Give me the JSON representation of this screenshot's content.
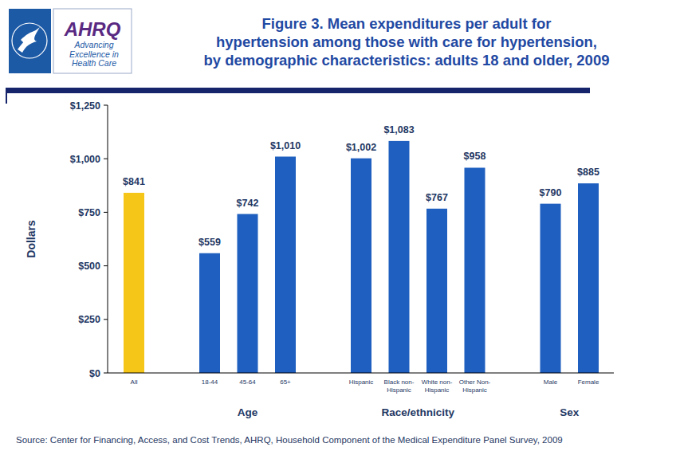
{
  "chart_data": {
    "type": "bar",
    "title": "Figure 3. Mean expenditures per adult for\nhypertension among those with care for hypertension,\nby demographic characteristics: adults 18 and older, 2009",
    "y_label": "Dollars",
    "source": "Source: Center for Financing, Access, and Cost Trends, AHRQ, Household Component of the Medical Expenditure Panel Survey, 2009",
    "logo": {
      "name": "AHRQ",
      "tagline": "Advancing\nExcellence in\nHealth Care"
    },
    "categories": [
      "All",
      "18-44",
      "45-64",
      "65+",
      "Hispanic",
      "Black non-Hispanic",
      "White non-Hispanic",
      "Other Non-Hispanic",
      "Male",
      "Female"
    ],
    "category_groups": [
      null,
      "Age",
      "Age",
      "Age",
      "Race/ethnicity",
      "Race/ethnicity",
      "Race/ethnicity",
      "Race/ethnicity",
      "Sex",
      "Sex"
    ],
    "values": [
      841,
      559,
      742,
      1010,
      1002,
      1083,
      767,
      958,
      790,
      885
    ],
    "value_labels": [
      "$841",
      "$559",
      "$742",
      "$1,010",
      "$1,002",
      "$1,083",
      "$767",
      "$958",
      "$790",
      "$885"
    ],
    "colors": [
      "#f5c518",
      "#1e5fbf",
      "#1e5fbf",
      "#1e5fbf",
      "#1e5fbf",
      "#1e5fbf",
      "#1e5fbf",
      "#1e5fbf",
      "#1e5fbf",
      "#1e5fbf"
    ],
    "ylim": [
      0,
      1250
    ],
    "yticks": [
      {
        "value": 0,
        "label": "$0"
      },
      {
        "value": 250,
        "label": "$250"
      },
      {
        "value": 500,
        "label": "$500"
      },
      {
        "value": 750,
        "label": "$750"
      },
      {
        "value": 1000,
        "label": "$1,000"
      },
      {
        "value": 1250,
        "label": "$1,250"
      }
    ],
    "grid": false,
    "data_labels": true
  }
}
